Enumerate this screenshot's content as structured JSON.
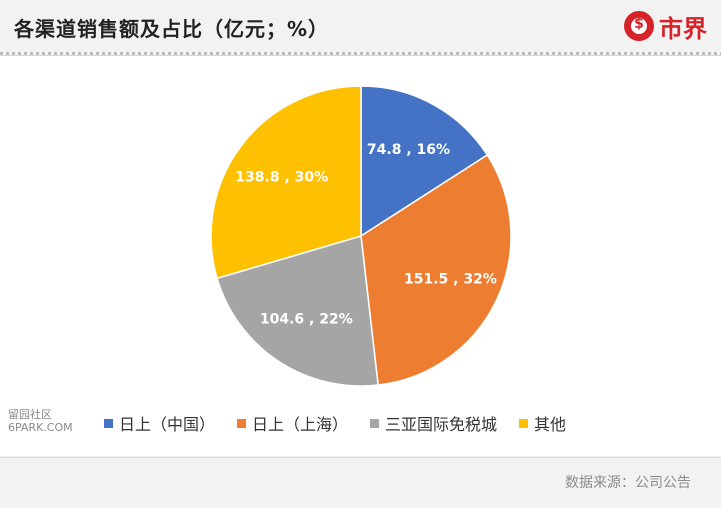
{
  "header": {
    "title": "各渠道销售额及占比（亿元；%）",
    "logo_text": "市界"
  },
  "chart_data": {
    "type": "pie",
    "title": "各渠道销售额及占比（亿元；%）",
    "slices": [
      {
        "name": "日上（中国）",
        "value": 74.8,
        "percent": 16,
        "label": "74.8 , 16%",
        "color": "#4472c4"
      },
      {
        "name": "日上（上海）",
        "value": 151.5,
        "percent": 32,
        "label": "151.5 , 32%",
        "color": "#ed7d31"
      },
      {
        "name": "三亚国际免税城",
        "value": 104.6,
        "percent": 22,
        "label": "104.6 , 22%",
        "color": "#a5a5a5"
      },
      {
        "name": "其他",
        "value": 138.8,
        "percent": 30,
        "label": "138.8 , 30%",
        "color": "#ffc000"
      }
    ],
    "legend_position": "bottom"
  },
  "watermark": {
    "line1": "留园社区",
    "line2": "6PARK.COM"
  },
  "footer": {
    "source": "数据来源：公司公告"
  }
}
